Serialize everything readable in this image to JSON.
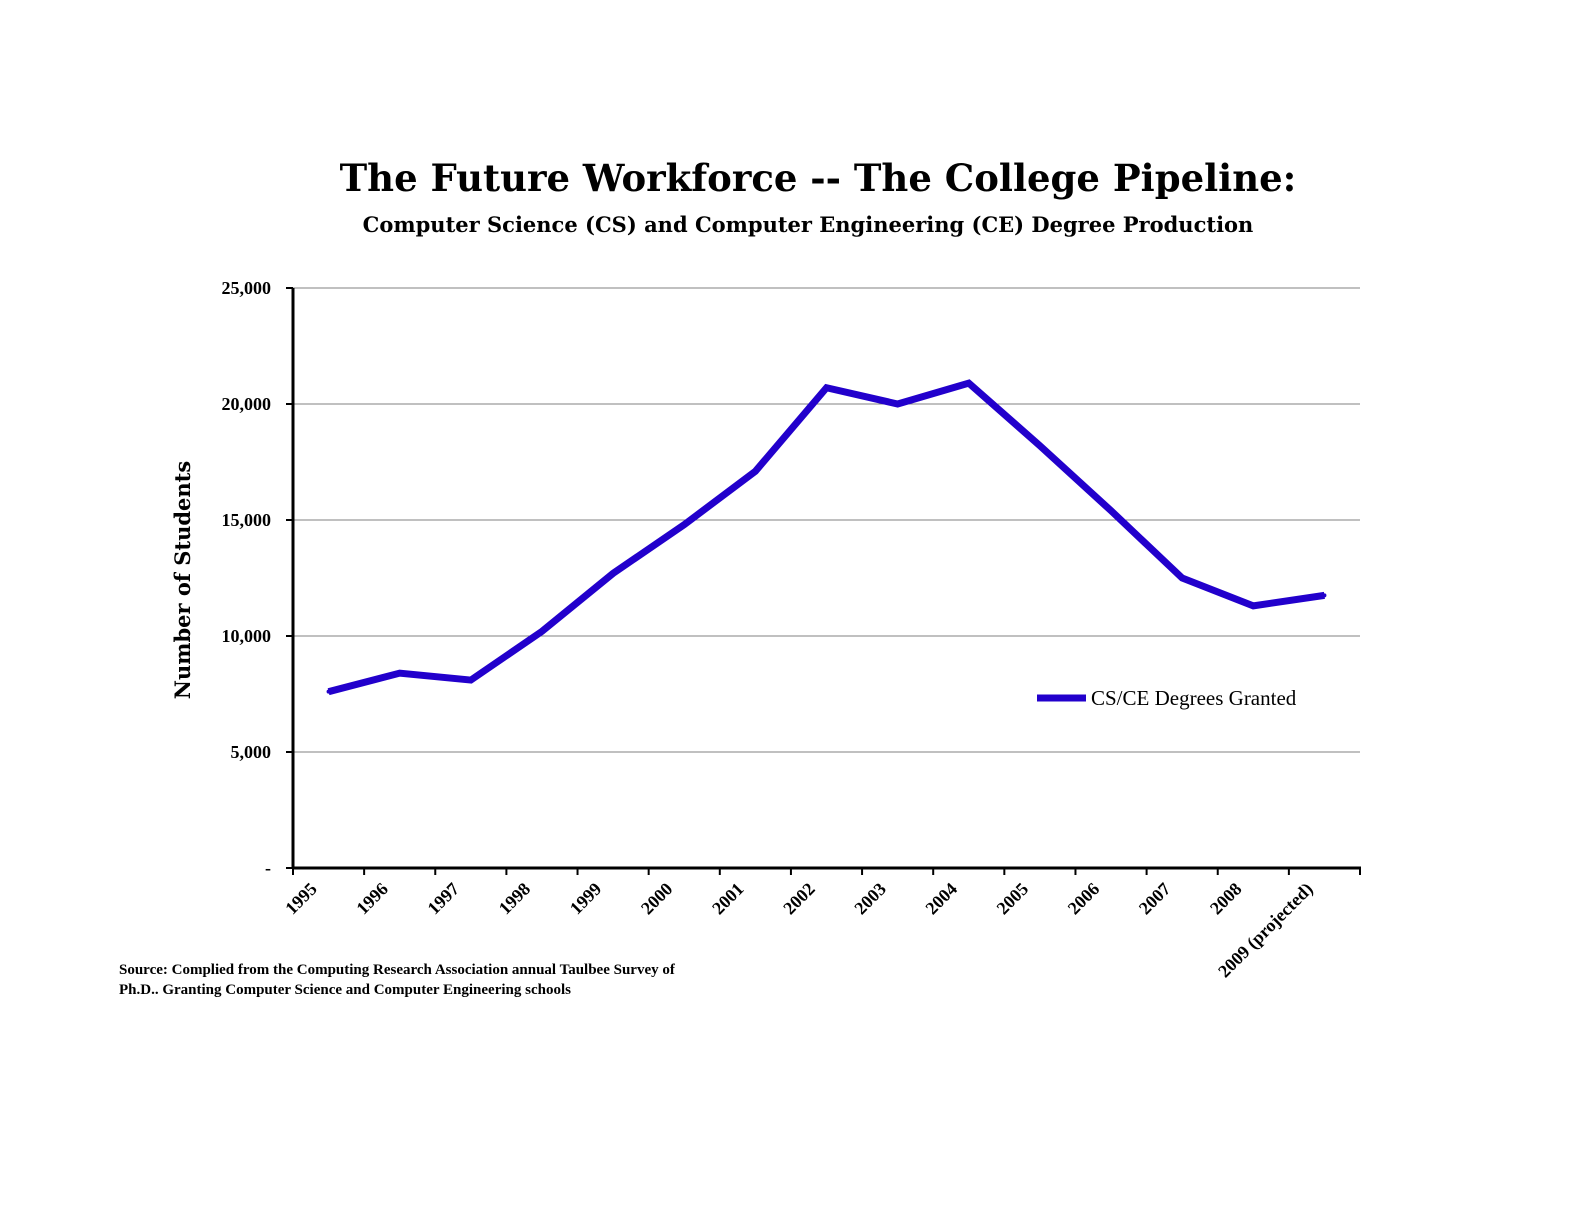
{
  "chart_data": {
    "type": "line",
    "title": "The Future Workforce -- The College Pipeline:",
    "subtitle": "Computer Science (CS) and Computer Engineering (CE) Degree Production",
    "xlabel": "",
    "ylabel": "Number of Students",
    "categories": [
      "1995",
      "1996",
      "1997",
      "1998",
      "1999",
      "2000",
      "2001",
      "2002",
      "2003",
      "2004",
      "2005",
      "2006",
      "2007",
      "2008",
      "2009 (projected)"
    ],
    "y_ticks": [
      "-",
      "5,000",
      "10,000",
      "15,000",
      "20,000",
      "25,000"
    ],
    "ylim": [
      0,
      25000
    ],
    "grid": "horizontal",
    "legend_position": "right, inside plot",
    "series": [
      {
        "name": "CS/CE Degrees Granted",
        "color": "#2200cc",
        "values": [
          7600,
          8400,
          8100,
          10200,
          12700,
          14800,
          17100,
          20700,
          20000,
          20900,
          18200,
          15400,
          12500,
          11300,
          11750
        ]
      }
    ]
  },
  "source_note": {
    "line1": "Source: Complied from the Computing Research Association annual Taulbee Survey of",
    "line2": "Ph.D.. Granting Computer Science and Computer Engineering schools"
  },
  "colors": {
    "axis": "#000000",
    "grid": "#808080",
    "line": "#2200cc"
  }
}
